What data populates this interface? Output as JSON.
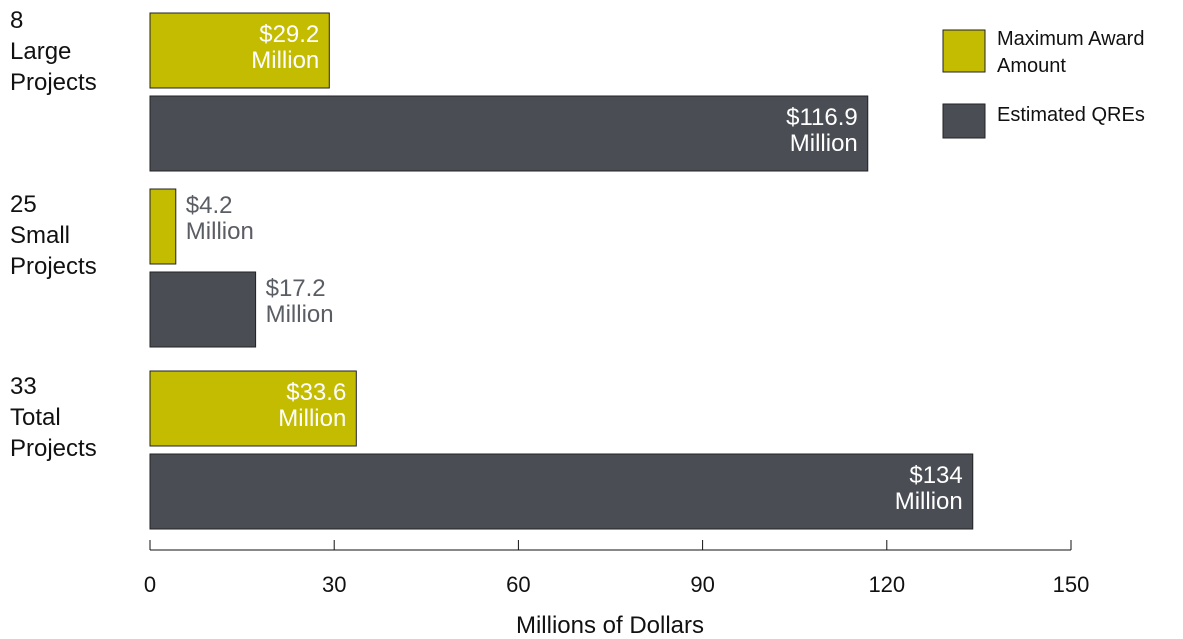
{
  "chart_data": {
    "type": "hbar",
    "categories": [
      "8\nLarge\nProjects",
      "25\nSmall\nProjects",
      "33\nTotal\nProjects"
    ],
    "series": [
      {
        "name": "Maximum Award Amount",
        "color": "#c3bc00",
        "values": [
          29.2,
          4.2,
          33.6
        ],
        "value_labels": [
          "$29.2\nMillion",
          "$4.2\nMillion",
          "$33.6\nMillion"
        ]
      },
      {
        "name": "Estimated QREs",
        "color": "#4a4d54",
        "values": [
          116.9,
          17.2,
          134
        ],
        "value_labels": [
          "$116.9\nMillion",
          "$17.2\nMillion",
          "$134\nMillion"
        ]
      }
    ],
    "xlabel": "Millions of Dollars",
    "xlim": [
      0,
      150
    ],
    "xticks": [
      0,
      30,
      60,
      90,
      120,
      150
    ],
    "legend": "top-right"
  }
}
